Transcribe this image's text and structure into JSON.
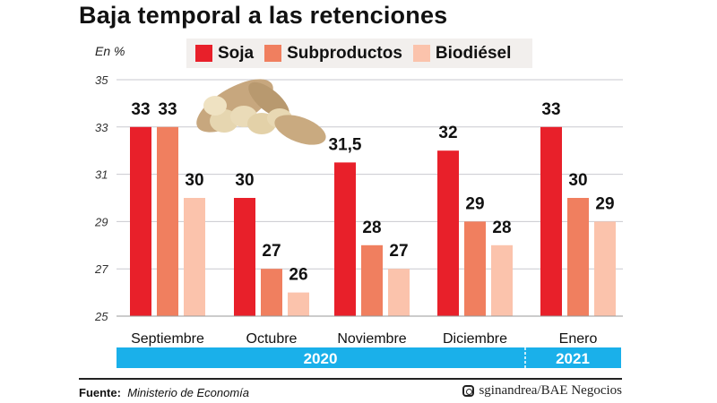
{
  "chart_data": {
    "type": "bar",
    "title": "Baja temporal a las retenciones",
    "ylabel": "En %",
    "ylim": [
      25,
      35
    ],
    "yticks": [
      25,
      27,
      29,
      31,
      33,
      35
    ],
    "grid": true,
    "legend_position": "top",
    "categories": [
      "Septiembre",
      "Octubre",
      "Noviembre",
      "Diciembre",
      "Enero"
    ],
    "series": [
      {
        "name": "Soja",
        "color": "#e8202a",
        "values": [
          33,
          30,
          31.5,
          32,
          33
        ],
        "labels": [
          "33",
          "30",
          "31,5",
          "32",
          "33"
        ]
      },
      {
        "name": "Subproductos",
        "color": "#f07f5f",
        "values": [
          33,
          27,
          28,
          29,
          30
        ],
        "labels": [
          "33",
          "27",
          "28",
          "29",
          "30"
        ]
      },
      {
        "name": "Biodiésel",
        "color": "#fbc3ac",
        "values": [
          30,
          26,
          27,
          28,
          29
        ],
        "labels": [
          "30",
          "26",
          "27",
          "28",
          "29"
        ]
      }
    ],
    "year_bands": [
      {
        "label": "2020",
        "from": "Septiembre",
        "to": "Diciembre"
      },
      {
        "label": "2021",
        "from": "Enero",
        "to": "Enero"
      }
    ],
    "band_color": "#1ab0ea"
  },
  "footer": {
    "source_label": "Fuente:",
    "source": "Ministerio de Economía",
    "credit": "sginandrea/BAE Negocios",
    "credit_icon": "instagram-icon"
  }
}
